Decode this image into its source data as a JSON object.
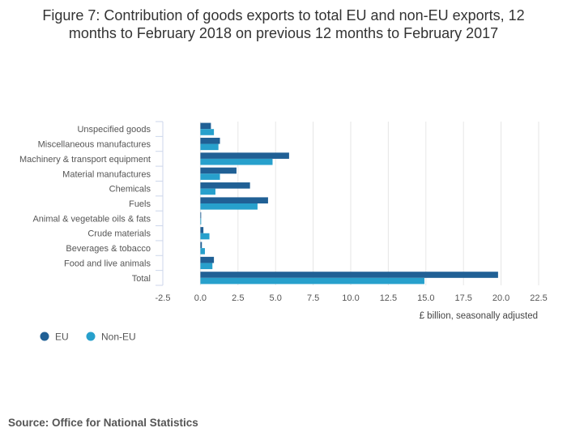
{
  "title_lines": [
    "Figure 7: Contribution of goods exports to total EU and non-EU exports, 12",
    "months to February 2018 on previous 12 months to February 2017"
  ],
  "source": "Source: Office for National Statistics",
  "colors": {
    "eu": "#206095",
    "non_eu": "#27a0cc",
    "grid": "#e6e6e6",
    "axis": "#ccd6eb"
  },
  "chart_data": {
    "type": "bar",
    "orientation": "horizontal",
    "title": "Figure 7: Contribution of goods exports to total EU and non-EU exports, 12 months to February 2018 on previous 12 months to February 2017",
    "categories": [
      "Unspecified goods",
      "Miscellaneous manufactures",
      "Machinery & transport equipment",
      "Material manufactures",
      "Chemicals",
      "Fuels",
      "Animal & vegetable oils & fats",
      "Crude materials",
      "Beverages & tobacco",
      "Food and live animals",
      "Total"
    ],
    "series": [
      {
        "name": "EU",
        "color": "#206095",
        "values": [
          0.7,
          1.3,
          5.9,
          2.4,
          3.3,
          4.5,
          0.05,
          0.2,
          0.1,
          0.9,
          19.8
        ]
      },
      {
        "name": "Non-EU",
        "color": "#27a0cc",
        "values": [
          0.9,
          1.2,
          4.8,
          1.3,
          1.0,
          3.8,
          0.05,
          0.6,
          0.3,
          0.8,
          14.9
        ]
      }
    ],
    "xlabel": "£ billion, seasonally adjusted",
    "ylabel": "",
    "xlim": [
      -2.5,
      22.5
    ],
    "xticks": [
      "-2.5",
      "0.0",
      "2.5",
      "5.0",
      "7.5",
      "10.0",
      "12.5",
      "15.0",
      "17.5",
      "20.0",
      "22.5"
    ],
    "grid": true,
    "legend_position": "bottom-left"
  }
}
